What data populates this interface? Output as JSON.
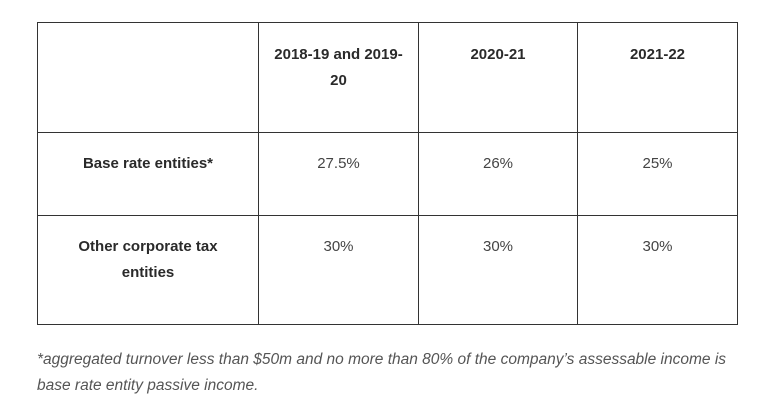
{
  "table": {
    "headers": [
      "",
      "2018-19 and 2019-20",
      "2020-21",
      "2021-22"
    ],
    "rows": [
      {
        "label": "Base rate entities*",
        "values": [
          "27.5%",
          "26%",
          "25%"
        ]
      },
      {
        "label": "Other corporate tax entities",
        "values": [
          "30%",
          "30%",
          "30%"
        ]
      }
    ]
  },
  "footnote": "*aggregated turnover less than $50m and no more than 80% of the company’s assessable income is base rate entity passive income."
}
